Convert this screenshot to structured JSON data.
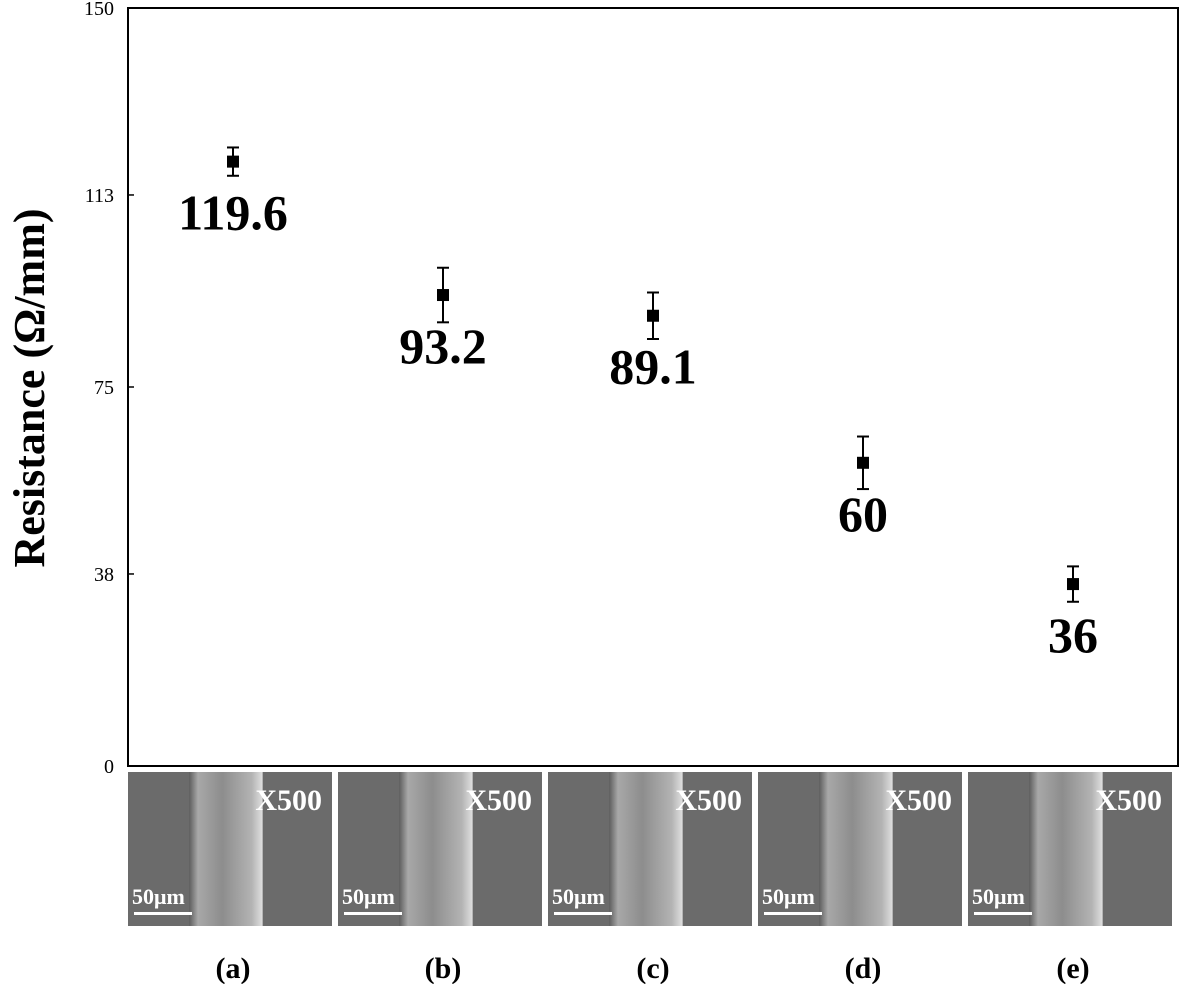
{
  "chart_data": {
    "type": "scatter",
    "ylabel": "Resistance (Ω/mm)",
    "xlabel": "",
    "ylim": [
      0,
      150
    ],
    "yticks": [
      0,
      38,
      75,
      113,
      150
    ],
    "grid": false,
    "categories": [
      "(a)",
      "(b)",
      "(c)",
      "(d)",
      "(e)"
    ],
    "values": [
      119.6,
      93.2,
      89.1,
      60,
      36
    ],
    "error": [
      2.8,
      5.4,
      4.6,
      5.2,
      3.5
    ],
    "data_labels": [
      "119.6",
      "93.2",
      "89.1",
      "60",
      "36"
    ]
  },
  "panels": [
    {
      "letter": "(a)",
      "magnification": "X500",
      "scale_bar": "50μm"
    },
    {
      "letter": "(b)",
      "magnification": "X500",
      "scale_bar": "50μm"
    },
    {
      "letter": "(c)",
      "magnification": "X500",
      "scale_bar": "50μm"
    },
    {
      "letter": "(d)",
      "magnification": "X500",
      "scale_bar": "50μm"
    },
    {
      "letter": "(e)",
      "magnification": "X500",
      "scale_bar": "50μm"
    }
  ],
  "colors": {
    "marker": "#000000",
    "sem_background": "#6b6b6b",
    "sem_fiber": "#9a9a9a"
  }
}
